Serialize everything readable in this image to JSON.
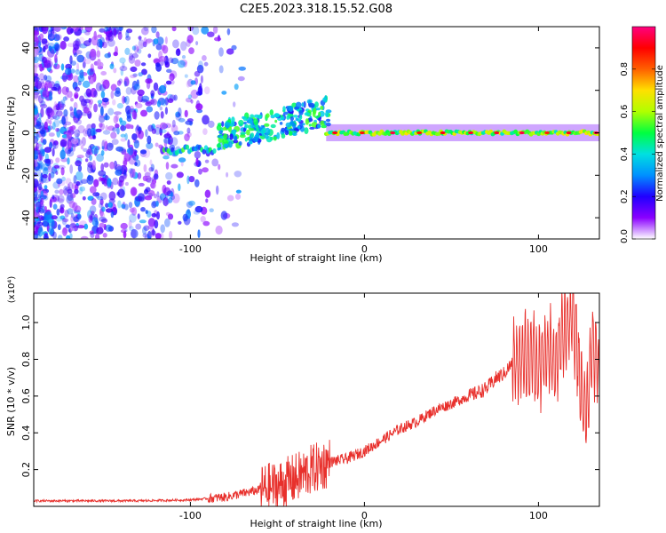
{
  "title": "C2E5.2023.318.15.52.G08",
  "colors": {
    "line": "#e8302c",
    "frame": "#000000",
    "colormap": [
      "#ffffff",
      "#8a00ff",
      "#2000ff",
      "#0090ff",
      "#00e0e0",
      "#00ff40",
      "#b0ff00",
      "#ffe000",
      "#ff6000",
      "#ff0000",
      "#ff0080"
    ]
  },
  "chart_data": [
    {
      "type": "heatmap",
      "title": "",
      "xlabel": "Height of straight line (km)",
      "ylabel": "Frequency (Hz)",
      "xlim": [
        -190,
        135
      ],
      "ylim": [
        -50,
        50
      ],
      "xticks": [
        -100,
        0,
        100
      ],
      "yticks": [
        -40,
        -20,
        0,
        20,
        40
      ],
      "colorbar": {
        "label": "Normalized spectral amplitude",
        "range": [
          0,
          1
        ],
        "ticks": [
          0.0,
          0.2,
          0.4,
          0.6,
          0.8
        ],
        "colormap": "rainbow"
      },
      "features": [
        {
          "region": "noise",
          "x_range": [
            -190,
            -80
          ],
          "y_range": [
            -50,
            50
          ],
          "amplitude": 0.15
        },
        {
          "region": "emerging-trace",
          "x_range": [
            -115,
            -85
          ],
          "frequency": -8,
          "amplitude": 0.35
        },
        {
          "region": "spread-trace",
          "x_range": [
            -85,
            -20
          ],
          "frequency": [
            0,
            12
          ],
          "amplitude": 0.45
        },
        {
          "region": "stable-trace",
          "x_range": [
            -22,
            135
          ],
          "frequency": 0,
          "amplitude": 0.85
        }
      ]
    },
    {
      "type": "line",
      "title": "",
      "xlabel": "Height of straight line (km)",
      "ylabel": "SNR (10 * v/v)",
      "y_multiplier": "(x10⁴)",
      "xlim": [
        -190,
        135
      ],
      "ylim": [
        0,
        1.16
      ],
      "xticks": [
        -100,
        0,
        100
      ],
      "yticks": [
        0.2,
        0.4,
        0.6,
        0.8,
        1.0
      ],
      "series": [
        {
          "x": [
            -190,
            -160,
            -130,
            -100,
            -80,
            -70,
            -60,
            -50,
            -40,
            -30,
            -20,
            -10,
            0,
            10,
            20,
            30,
            40,
            50,
            60,
            70,
            76,
            80,
            85,
            90,
            95,
            100,
            105,
            110,
            115,
            120,
            125,
            128,
            131,
            135
          ],
          "y": [
            0.03,
            0.03,
            0.03,
            0.035,
            0.05,
            0.07,
            0.09,
            0.11,
            0.15,
            0.2,
            0.24,
            0.26,
            0.3,
            0.36,
            0.42,
            0.46,
            0.52,
            0.56,
            0.6,
            0.64,
            0.7,
            0.72,
            0.78,
            0.8,
            0.82,
            0.78,
            0.85,
            0.78,
            0.95,
            1.05,
            0.6,
            0.5,
            0.9,
            0.7
          ]
        }
      ]
    }
  ]
}
